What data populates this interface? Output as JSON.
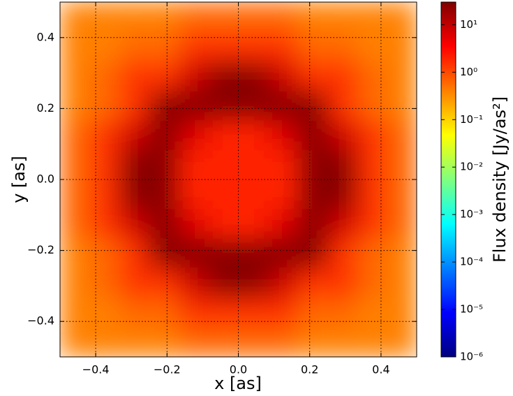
{
  "chart_data": {
    "type": "heatmap",
    "xlabel": "x [as]",
    "ylabel": "y [as]",
    "xlim": [
      -0.5,
      0.5
    ],
    "ylim": [
      -0.5,
      0.5
    ],
    "xticks": [
      {
        "value": -0.4,
        "label": "−0.4"
      },
      {
        "value": -0.2,
        "label": "−0.2"
      },
      {
        "value": 0,
        "label": "0.0"
      },
      0.2,
      0.4
    ],
    "yticks": [
      {
        "value": -0.4,
        "label": "−0.4"
      },
      {
        "value": -0.2,
        "label": "−0.2"
      },
      {
        "value": 0,
        "label": "0.0"
      },
      0.2,
      0.4
    ],
    "grid": true,
    "colormap": "jet",
    "colorbar_label": "Flux density [Jy/as²]",
    "zscale": "log",
    "zlim": [
      1e-06,
      30
    ],
    "zticks": [
      {
        "value": 1e-06,
        "label": "10⁻⁶"
      },
      {
        "value": 1e-05,
        "label": "10⁻⁵"
      },
      {
        "value": 0.0001,
        "label": "10⁻⁴"
      },
      {
        "value": 0.001,
        "label": "10⁻³"
      },
      {
        "value": 0.01,
        "label": "10⁻²"
      },
      {
        "value": 0.1,
        "label": "10⁻¹"
      },
      {
        "value": 1,
        "label": "10⁰"
      },
      {
        "value": 10,
        "label": "10¹"
      }
    ],
    "z": [
      [
        0.4,
        0.4,
        0.4,
        0.4,
        0.6,
        0.6,
        0.6,
        0.6,
        0.4,
        0.4,
        0.4,
        0.4
      ],
      [
        0.4,
        0.4,
        0.6,
        0.6,
        1.5,
        1.5,
        1.5,
        1.5,
        0.6,
        0.6,
        0.4,
        0.4
      ],
      [
        0.4,
        0.6,
        1.5,
        1.5,
        8,
        25,
        25,
        8,
        1.5,
        1.5,
        0.6,
        0.4
      ],
      [
        0.4,
        0.6,
        1.5,
        25,
        25,
        25,
        25,
        25,
        25,
        1.5,
        0.6,
        0.4
      ],
      [
        0.6,
        1.5,
        8,
        25,
        6,
        2,
        2,
        6,
        25,
        8,
        1.5,
        0.6
      ],
      [
        0.6,
        1.5,
        25,
        25,
        2,
        2,
        2,
        2,
        25,
        25,
        1.5,
        0.6
      ],
      [
        0.6,
        1.5,
        25,
        25,
        2,
        2,
        2,
        2,
        25,
        25,
        1.5,
        0.6
      ],
      [
        0.6,
        1.5,
        8,
        25,
        6,
        2,
        2,
        6,
        25,
        8,
        1.5,
        0.6
      ],
      [
        0.4,
        0.6,
        1.5,
        25,
        25,
        25,
        25,
        25,
        25,
        1.5,
        0.6,
        0.4
      ],
      [
        0.4,
        0.6,
        1.5,
        1.5,
        8,
        25,
        25,
        8,
        1.5,
        1.5,
        0.6,
        0.4
      ],
      [
        0.4,
        0.4,
        0.6,
        0.6,
        1.5,
        1.5,
        1.5,
        1.5,
        0.6,
        0.6,
        0.4,
        0.4
      ],
      [
        0.4,
        0.4,
        0.4,
        0.4,
        0.6,
        0.6,
        0.6,
        0.6,
        0.4,
        0.4,
        0.4,
        0.4
      ]
    ]
  }
}
